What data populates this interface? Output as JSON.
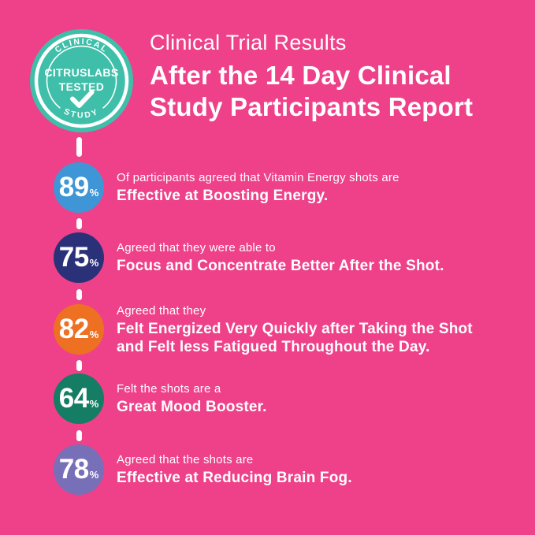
{
  "colors": {
    "background": "#EE4189",
    "badge_teal": "#3FBFA9",
    "white": "#FFFFFF",
    "stat_blue": "#3E96D6",
    "stat_navy": "#2B3179",
    "stat_orange": "#EE7023",
    "stat_green": "#147D63",
    "stat_purple": "#7770B8"
  },
  "badge": {
    "top_arc": "CLINICAL",
    "bottom_arc": "STUDY",
    "center_line1": "CITRUSLABS",
    "center_line2": "TESTED",
    "check_icon": "checkmark"
  },
  "header": {
    "eyebrow": "Clinical Trial Results",
    "title_line1": "After the 14 Day Clinical",
    "title_line2": "Study Participants Report"
  },
  "stats": [
    {
      "value": "89",
      "unit": "%",
      "color": "#3E96D6",
      "lead": "Of participants agreed that Vitamin Energy shots are",
      "bold_lines": [
        "Effective at Boosting Energy."
      ]
    },
    {
      "value": "75",
      "unit": "%",
      "color": "#2B3179",
      "lead": "Agreed that they were able to",
      "bold_lines": [
        "Focus and Concentrate Better After the Shot."
      ]
    },
    {
      "value": "82",
      "unit": "%",
      "color": "#EE7023",
      "lead": "Agreed that they",
      "bold_lines": [
        "Felt Energized Very Quickly after Taking the Shot",
        "and Felt less Fatigued Throughout the Day."
      ]
    },
    {
      "value": "64",
      "unit": "%",
      "color": "#147D63",
      "lead": "Felt the shots are a",
      "bold_lines": [
        "Great Mood Booster."
      ]
    },
    {
      "value": "78",
      "unit": "%",
      "color": "#7770B8",
      "lead": "Agreed that the shots are",
      "bold_lines": [
        "Effective at Reducing Brain Fog."
      ]
    }
  ],
  "chart_data": {
    "type": "table",
    "title": "After the 14 Day Clinical Study Participants Report",
    "subtitle": "Clinical Trial Results",
    "unit": "%",
    "categories": [
      "Effective at Boosting Energy",
      "Focus and Concentrate Better After the Shot",
      "Felt Energized Very Quickly after Taking the Shot and Felt less Fatigued Throughout the Day",
      "Great Mood Booster",
      "Effective at Reducing Brain Fog"
    ],
    "values": [
      89,
      75,
      82,
      64,
      78
    ]
  }
}
